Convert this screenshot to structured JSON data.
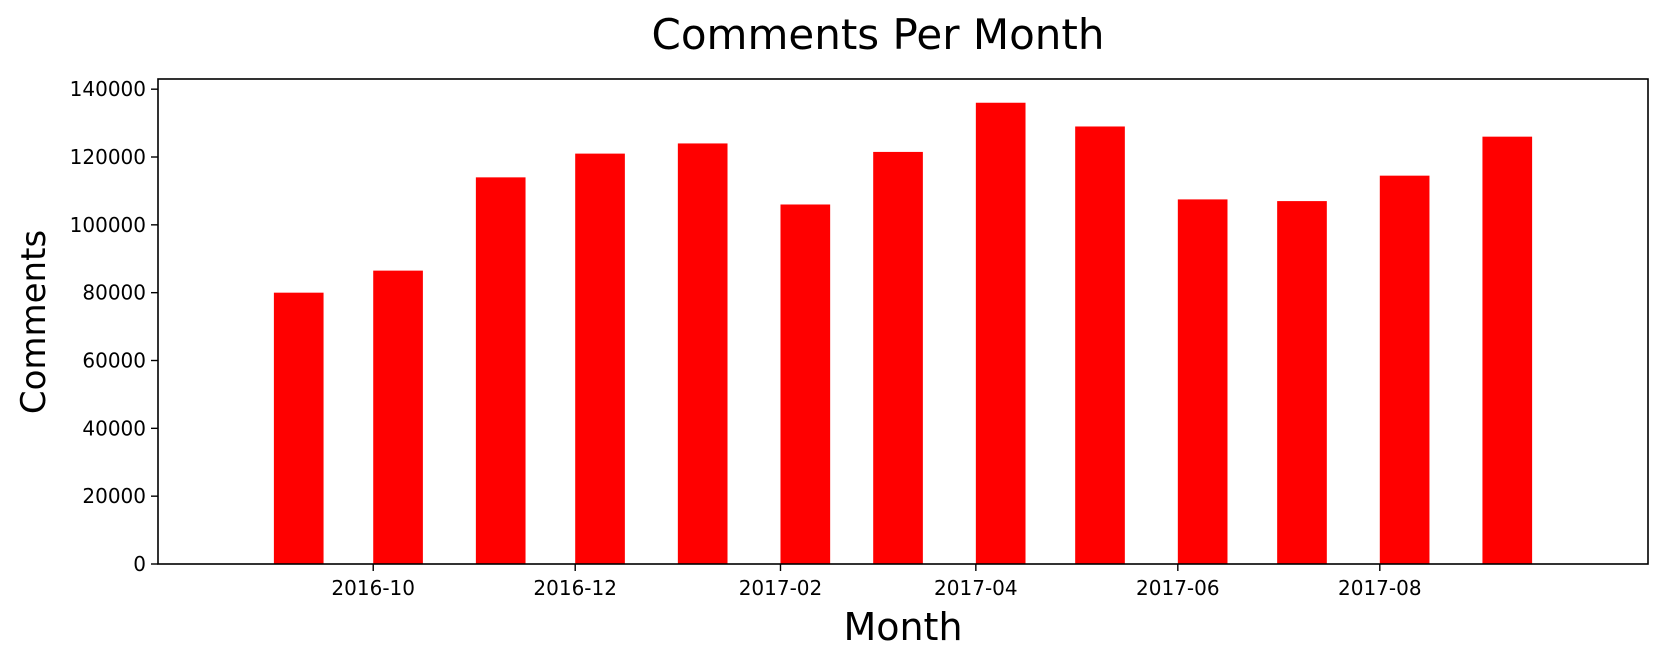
{
  "chart_data": {
    "type": "bar",
    "title": "Comments Per Month",
    "xlabel": "Month",
    "ylabel": "Comments",
    "categories": [
      "2016-09",
      "2016-10",
      "2016-11",
      "2016-12",
      "2017-01",
      "2017-02",
      "2017-03",
      "2017-04",
      "2017-05",
      "2017-06",
      "2017-07",
      "2017-08",
      "2017-09"
    ],
    "values": [
      80000,
      86500,
      114000,
      121000,
      124000,
      106000,
      121500,
      136000,
      129000,
      107500,
      107000,
      114500,
      126000
    ],
    "ylim": [
      0,
      143000
    ],
    "yticks": [
      0,
      20000,
      40000,
      60000,
      80000,
      100000,
      120000,
      140000
    ],
    "xticks": [
      "2016-10",
      "2016-12",
      "2017-02",
      "2017-04",
      "2017-06",
      "2017-08"
    ],
    "xlim": [
      "2016-07-28",
      "2017-10-21"
    ],
    "color": "#ff0000",
    "grid": false
  }
}
